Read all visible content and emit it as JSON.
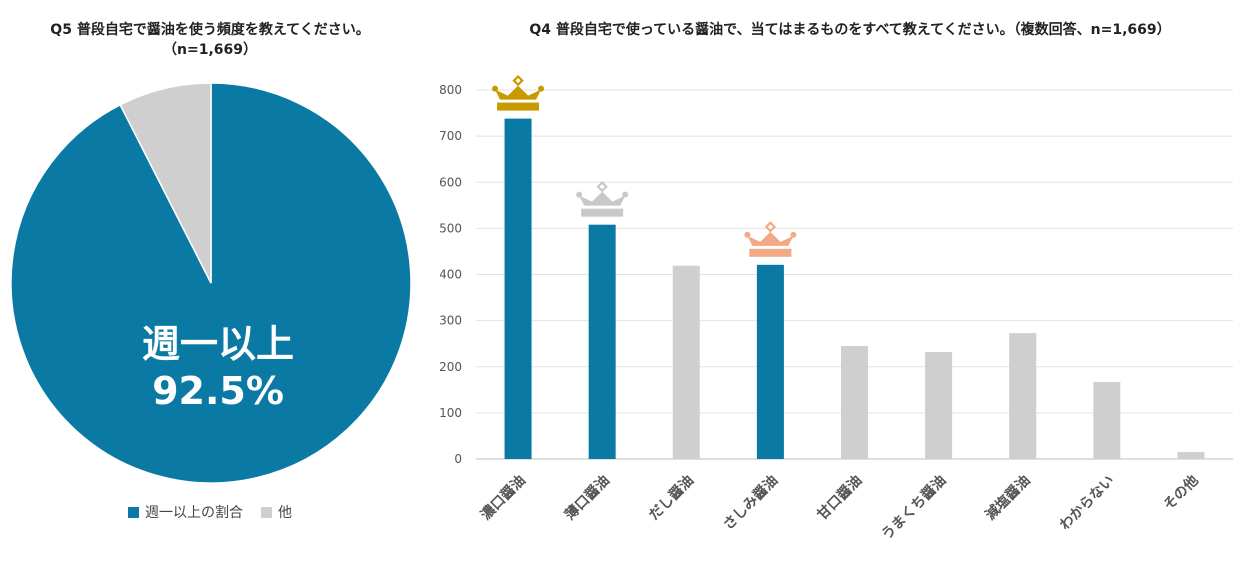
{
  "colors": {
    "primary": "#0a7aa5",
    "gray": "#d0cfcf",
    "gold": "#c89a00",
    "silver": "#c8c8c8",
    "bronze": "#f1aa83"
  },
  "chart_data": [
    {
      "type": "pie",
      "title_line1": "Q5 普段自宅で醤油を使う頻度を教えてください。",
      "title_line2": "（n=1,669）",
      "slices": [
        {
          "label": "週一以上の割合",
          "value": 92.5,
          "color": "#0a7aa5"
        },
        {
          "label": "他",
          "value": 7.5,
          "color": "#d0cfcf"
        }
      ],
      "center_label_line1": "週一以上",
      "center_label_line2": "92.5%"
    },
    {
      "type": "bar",
      "title": "Q4 普段自宅で使っている醤油で、当てはまるものをすべて教えてください。（複数回答、n=1,669）",
      "categories": [
        "濃口醤油",
        "薄口醤油",
        "だし醤油",
        "さしみ醤油",
        "甘口醤油",
        "うまくち醤油",
        "減塩醤油",
        "わからない",
        "その他"
      ],
      "values": [
        738,
        508,
        419,
        421,
        245,
        232,
        273,
        167,
        15
      ],
      "highlight": [
        true,
        true,
        false,
        true,
        false,
        false,
        false,
        false,
        false
      ],
      "crowns": [
        {
          "index": 0,
          "rank": "gold"
        },
        {
          "index": 1,
          "rank": "silver"
        },
        {
          "index": 3,
          "rank": "bronze"
        }
      ],
      "ylim": [
        0,
        800
      ],
      "yticks": [
        0,
        100,
        200,
        300,
        400,
        500,
        600,
        700,
        800
      ]
    }
  ]
}
